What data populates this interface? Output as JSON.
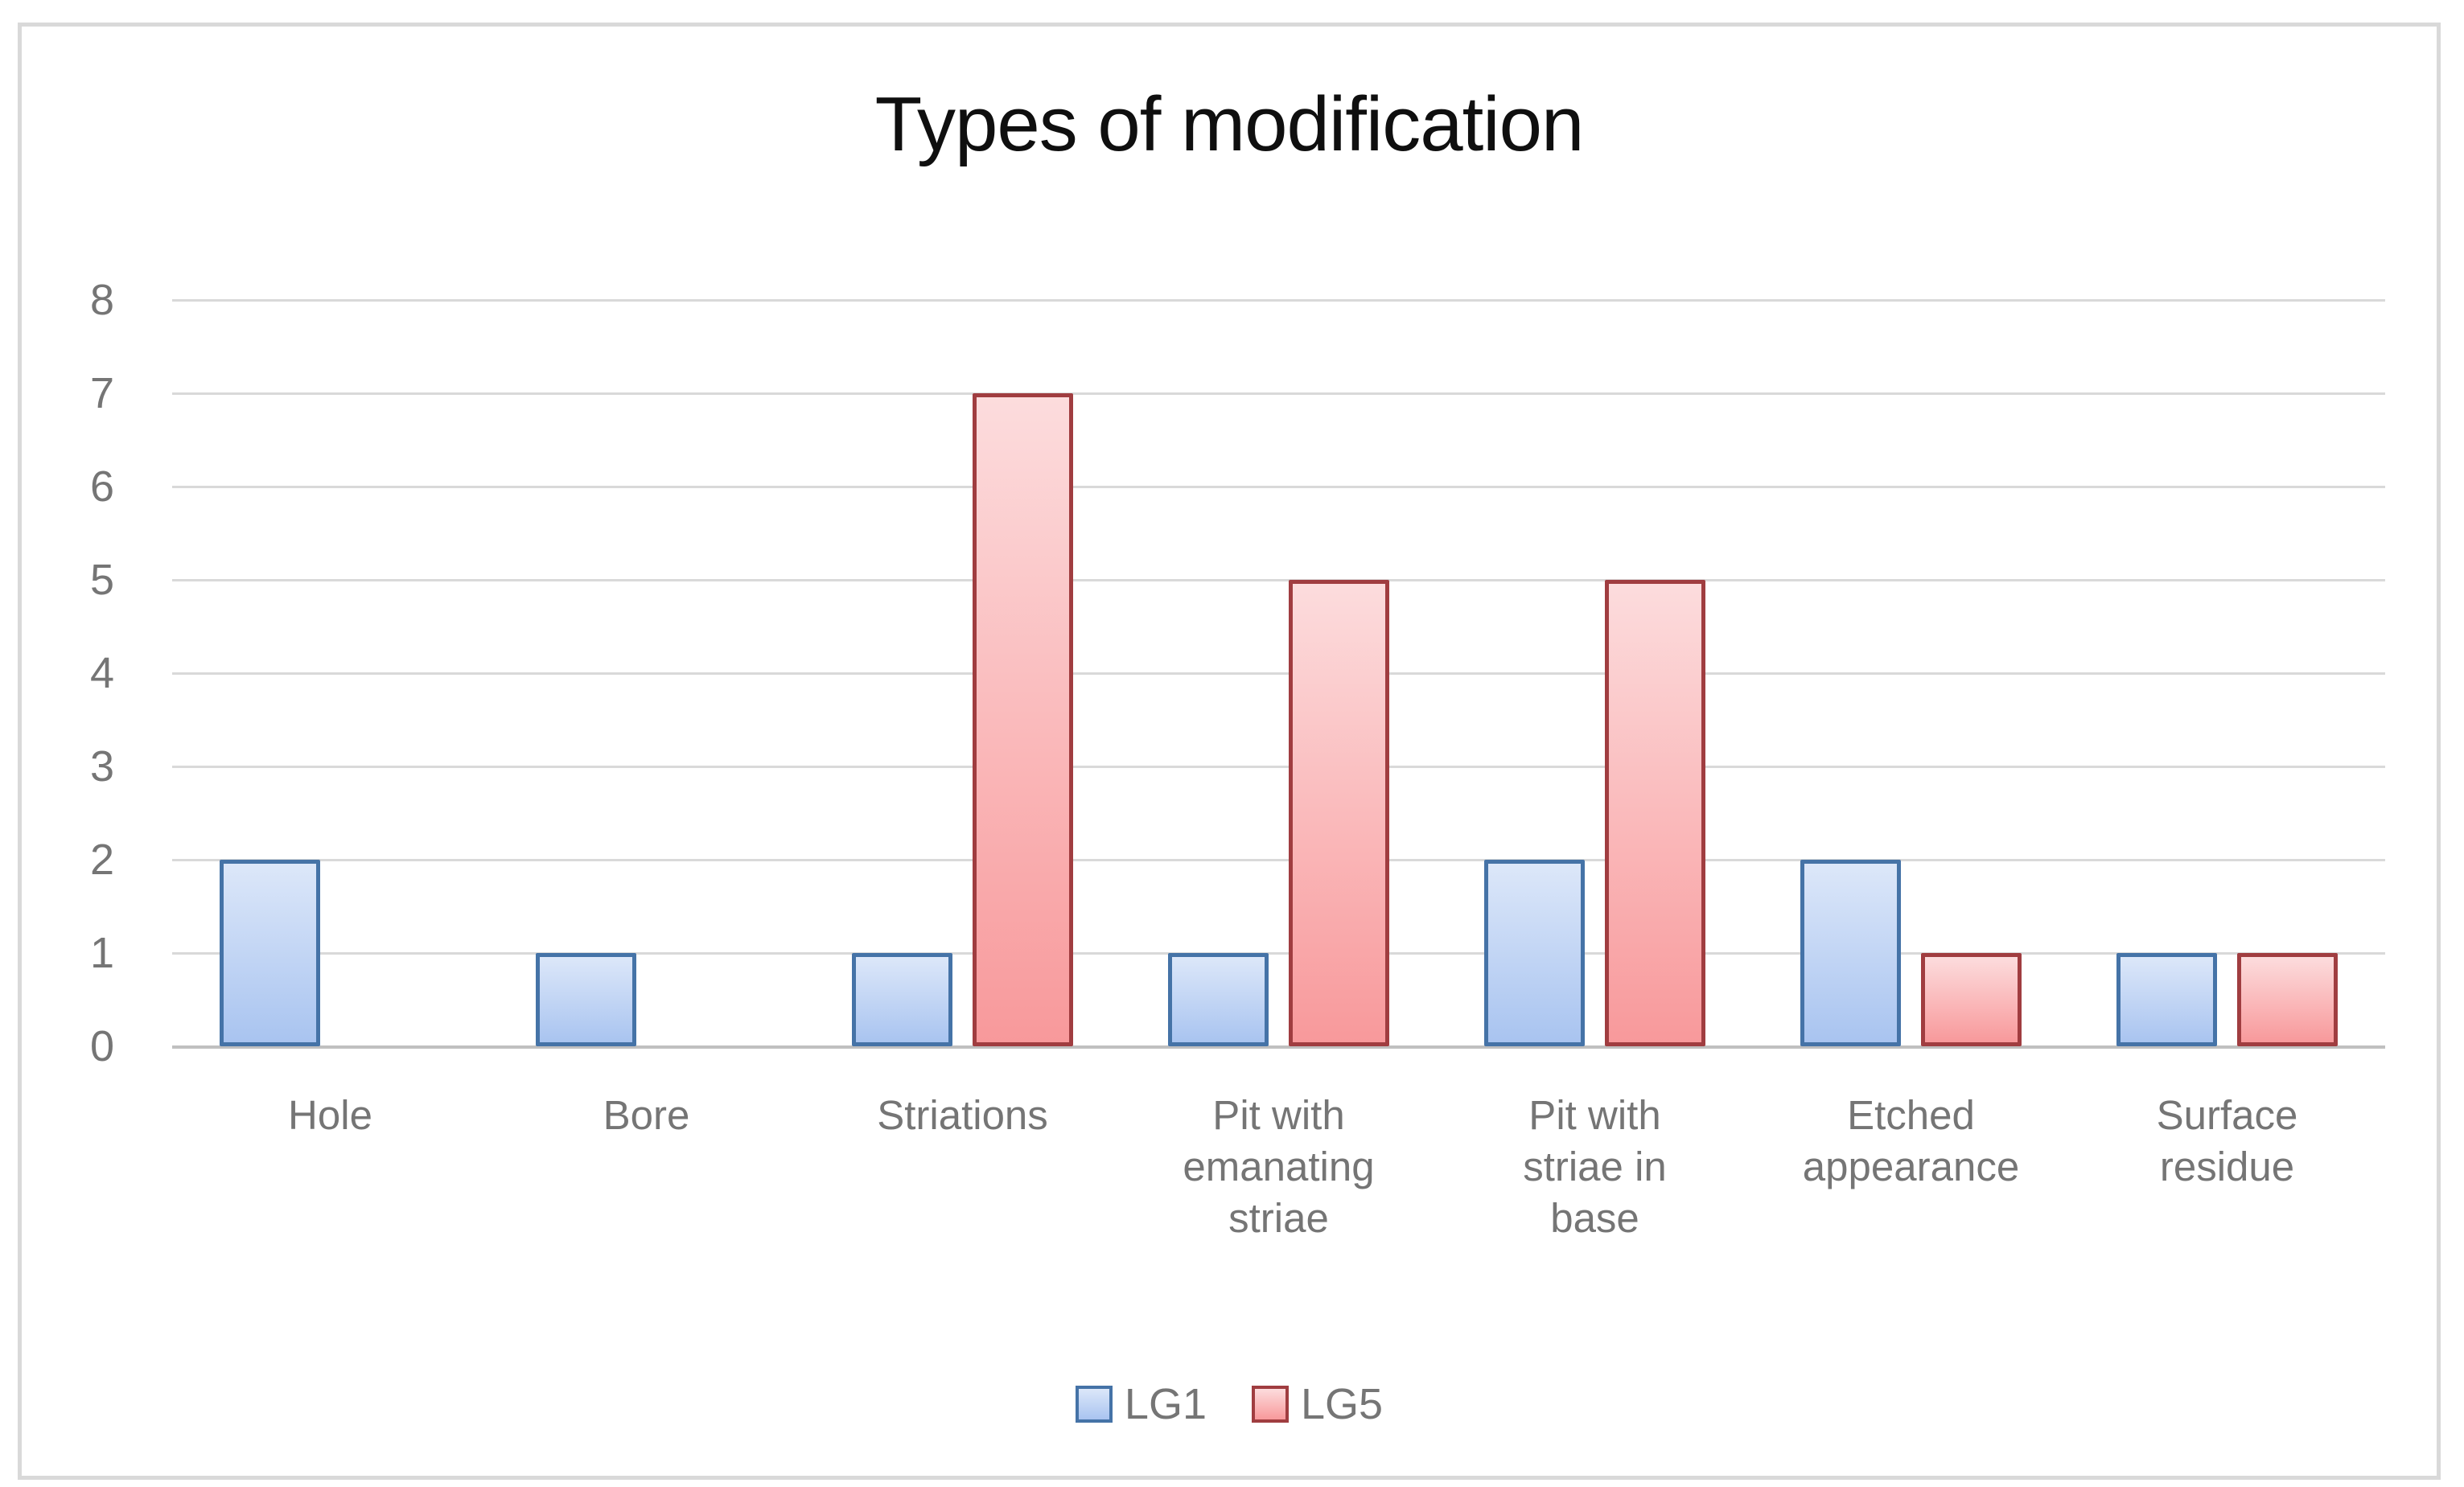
{
  "title": "Types of modification",
  "chart_data": {
    "type": "bar",
    "title": "Types of modification",
    "categories": [
      "Hole",
      "Bore",
      "Striations",
      "Pit with emanating striae",
      "Pit with striae in base",
      "Etched appearance",
      "Surface residue"
    ],
    "series": [
      {
        "name": "LG1",
        "values": [
          2,
          1,
          1,
          1,
          2,
          2,
          1
        ],
        "fill_top": "#dce7f9",
        "fill_bottom": "#a9c4f0",
        "border": "#4573a7"
      },
      {
        "name": "LG5",
        "values": [
          0,
          0,
          7,
          5,
          5,
          1,
          1
        ],
        "fill_top": "#fcdcdd",
        "fill_bottom": "#f8999b",
        "border": "#a03d40"
      }
    ],
    "xlabel": "",
    "ylabel": "",
    "ylim": [
      0,
      8
    ],
    "ytick_step": 1,
    "yticks": [
      0,
      1,
      2,
      3,
      4,
      5,
      6,
      7,
      8
    ],
    "grid": true,
    "legend_position": "bottom-center"
  },
  "colors": {
    "gridline": "#d9d9d9",
    "axis_line": "#c0c0c0",
    "label_text": "#757575",
    "title_text": "#0f0f0f",
    "frame_border": "#d9d9d9",
    "background": "#ffffff"
  }
}
